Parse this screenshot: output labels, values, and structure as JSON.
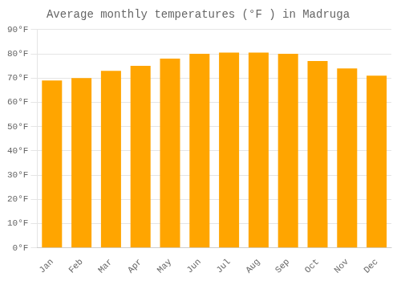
{
  "chart_data": {
    "type": "bar",
    "title": "Average monthly temperatures (°F ) in Madruga",
    "categories": [
      "Jan",
      "Feb",
      "Mar",
      "Apr",
      "May",
      "Jun",
      "Jul",
      "Aug",
      "Sep",
      "Oct",
      "Nov",
      "Dec"
    ],
    "values": [
      69,
      70,
      73,
      75,
      78,
      80,
      80.5,
      80.5,
      80,
      77,
      74,
      71
    ],
    "color": "#FFA500",
    "ylim": [
      0,
      90
    ],
    "yticks": [
      {
        "value": 0,
        "label": "0°F"
      },
      {
        "value": 10,
        "label": "10°F"
      },
      {
        "value": 20,
        "label": "20°F"
      },
      {
        "value": 30,
        "label": "30°F"
      },
      {
        "value": 40,
        "label": "40°F"
      },
      {
        "value": 50,
        "label": "50°F"
      },
      {
        "value": 60,
        "label": "60°F"
      },
      {
        "value": 70,
        "label": "70°F"
      },
      {
        "value": 80,
        "label": "80°F"
      },
      {
        "value": 90,
        "label": "90°F"
      }
    ],
    "grid": true
  }
}
